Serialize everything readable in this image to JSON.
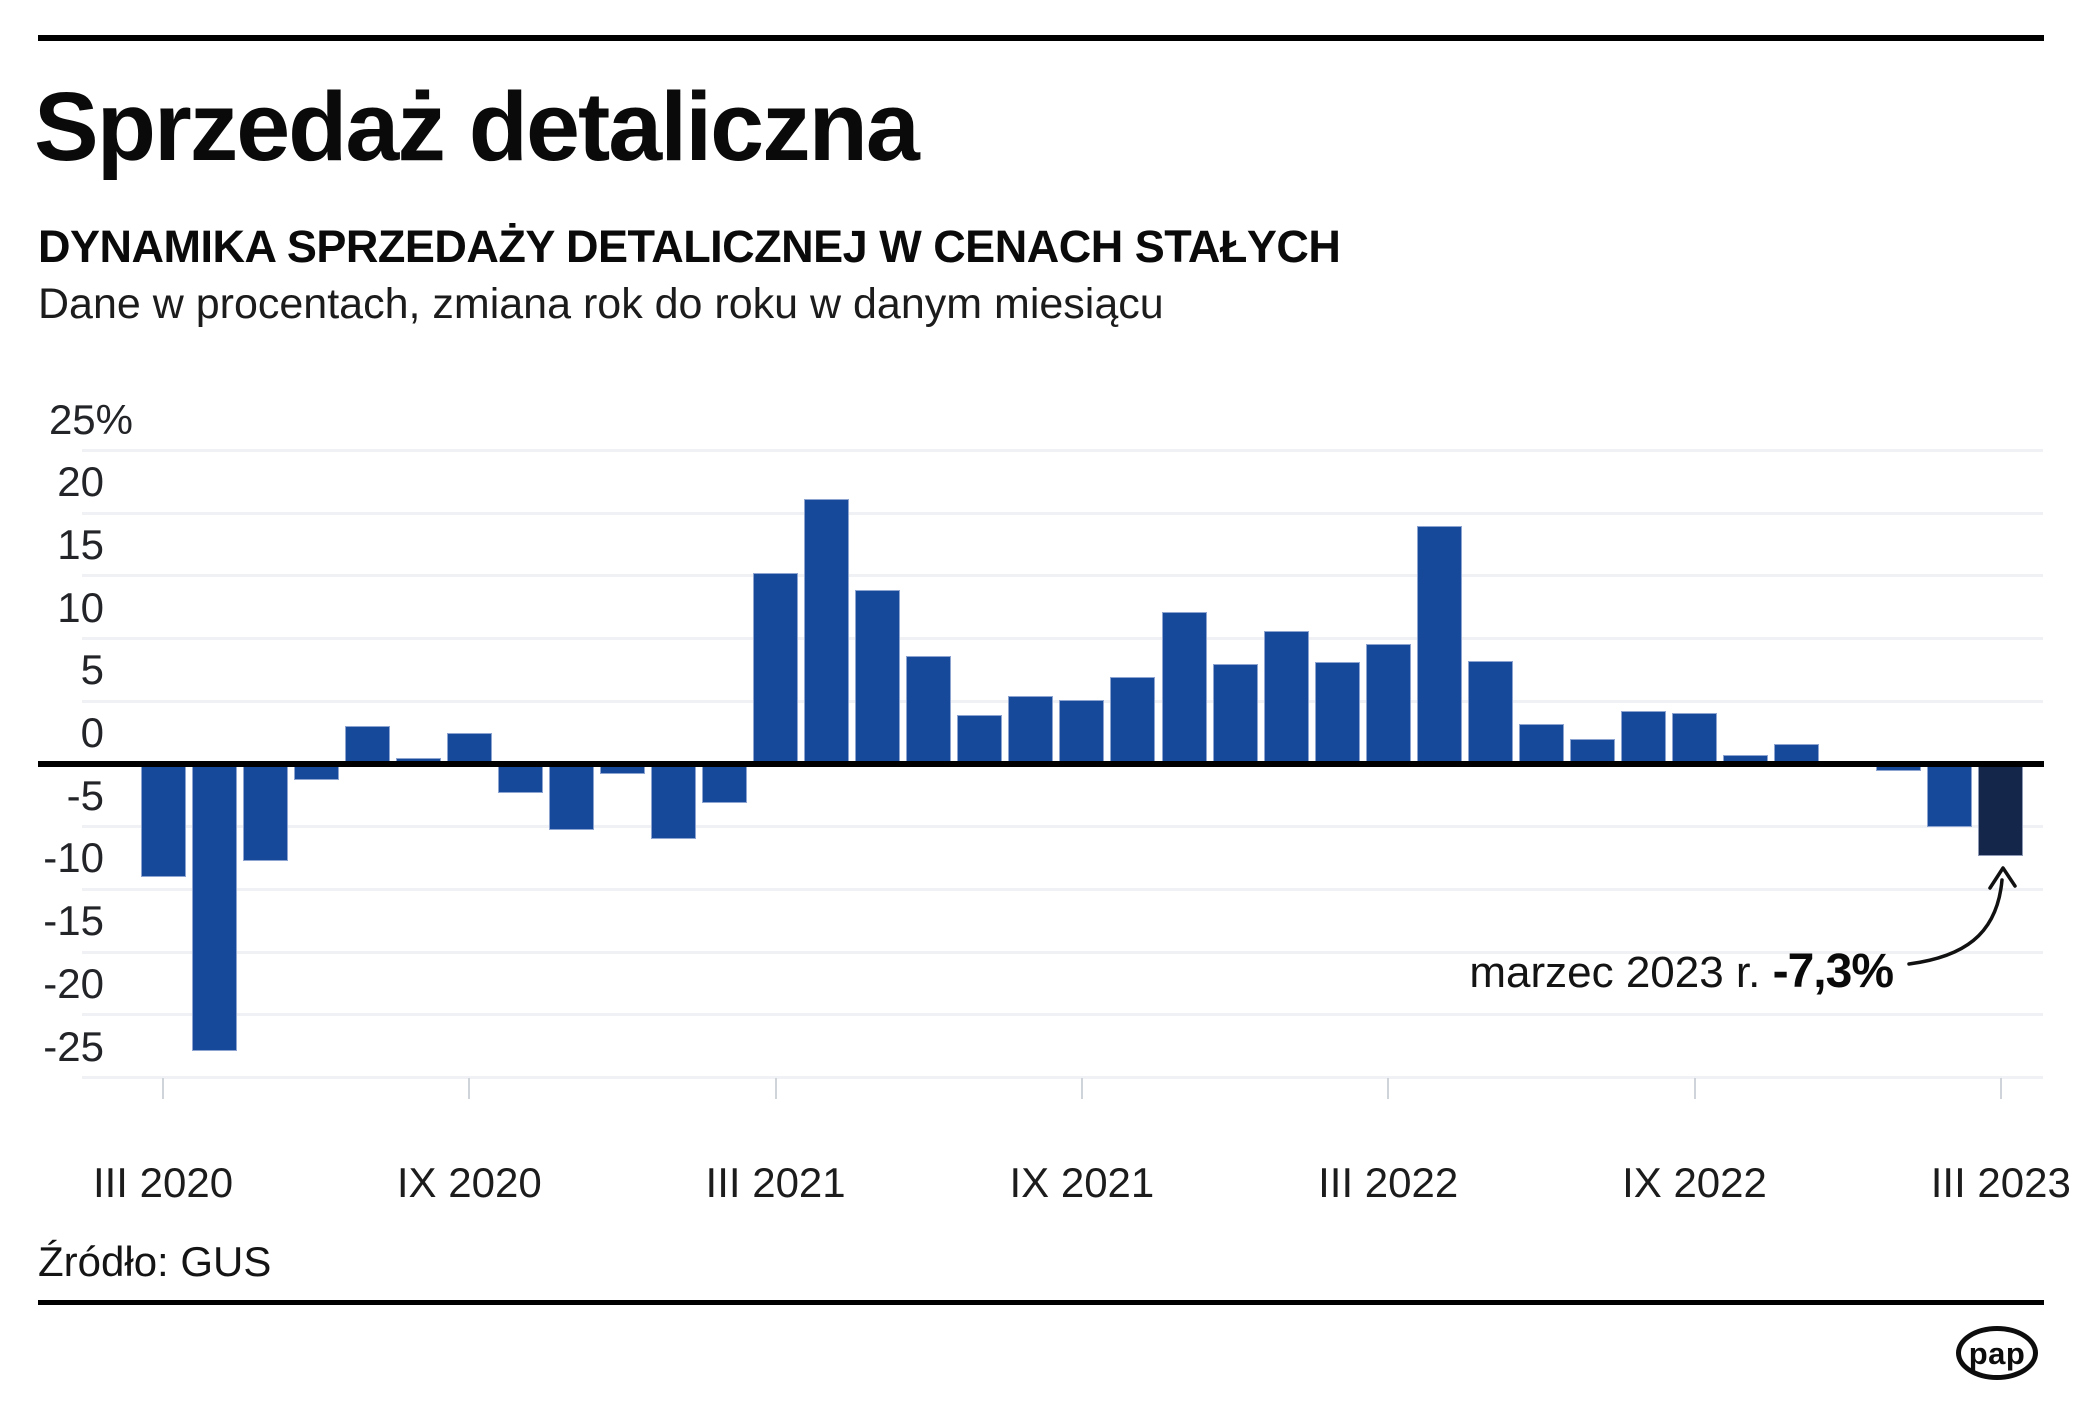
{
  "header": {
    "title": "Sprzedaż detaliczna",
    "subtitle": "DYNAMIKA SPRZEDAŻY DETALICZNEJ W CENACH STAŁYCH",
    "description": "Dane w procentach, zmiana rok do roku w danym miesiącu"
  },
  "chart_data": {
    "type": "bar",
    "title": "Dynamika sprzedaży detalicznej w cenach stałych",
    "unit": "percent, year-over-year change",
    "categories": [
      "III 2020",
      "IV 2020",
      "V 2020",
      "VI 2020",
      "VII 2020",
      "VIII 2020",
      "IX 2020",
      "X 2020",
      "XI 2020",
      "XII 2020",
      "I 2021",
      "II 2021",
      "III 2021",
      "IV 2021",
      "V 2021",
      "VI 2021",
      "VII 2021",
      "VIII 2021",
      "IX 2021",
      "X 2021",
      "XI 2021",
      "XII 2021",
      "I 2022",
      "II 2022",
      "III 2022",
      "IV 2022",
      "V 2022",
      "VI 2022",
      "VII 2022",
      "VIII 2022",
      "IX 2022",
      "X 2022",
      "XI 2022",
      "XII 2022",
      "I 2023",
      "II 2023",
      "III 2023"
    ],
    "values": [
      -9.0,
      -22.9,
      -7.7,
      -1.3,
      3.0,
      0.5,
      2.5,
      -2.3,
      -5.3,
      -0.8,
      -6.0,
      -3.1,
      15.2,
      21.1,
      13.9,
      8.6,
      3.9,
      5.4,
      5.1,
      6.9,
      12.1,
      8.0,
      10.6,
      8.1,
      9.6,
      19.0,
      8.2,
      3.2,
      2.0,
      4.2,
      4.1,
      0.7,
      1.6,
      0.2,
      -0.3,
      -5.0,
      -7.3
    ],
    "highlight_index": 36,
    "ylim": [
      -25,
      25
    ],
    "grid": "horizontal",
    "legend": "none",
    "y_ticks": [
      {
        "label": "25%",
        "value": 25
      },
      {
        "label": "20",
        "value": 20
      },
      {
        "label": "15",
        "value": 15
      },
      {
        "label": "10",
        "value": 10
      },
      {
        "label": "5",
        "value": 5
      },
      {
        "label": "0",
        "value": 0
      },
      {
        "label": "-5",
        "value": -5
      },
      {
        "label": "-10",
        "value": -10
      },
      {
        "label": "-15",
        "value": -15
      },
      {
        "label": "-20",
        "value": -20
      },
      {
        "label": "-25",
        "value": -25
      }
    ],
    "x_ticks": [
      {
        "label": "III 2020",
        "index": 0
      },
      {
        "label": "IX 2020",
        "index": 6
      },
      {
        "label": "III 2021",
        "index": 12
      },
      {
        "label": "IX 2021",
        "index": 18
      },
      {
        "label": "III 2022",
        "index": 24
      },
      {
        "label": "IX 2022",
        "index": 30
      },
      {
        "label": "III 2023",
        "index": 36
      }
    ],
    "colors": {
      "bar": "#17499B",
      "bar_highlight": "#14274A"
    }
  },
  "annotation": {
    "label": "marzec 2023 r. ",
    "value": "-7,3%"
  },
  "footer": {
    "source": "Źródło: GUS",
    "logo": "pap"
  }
}
